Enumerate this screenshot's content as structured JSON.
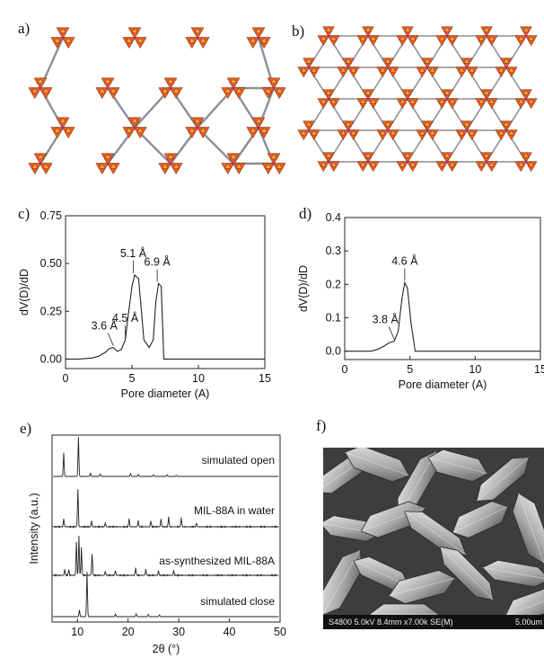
{
  "panels": {
    "a": "a)",
    "b": "b)",
    "c": "c)",
    "d": "d)",
    "e": "e)",
    "f": "f)"
  },
  "colors": {
    "tetra_main": "#ea5b1c",
    "tetra_light": "#f5a24a",
    "linker": "#8a8f9a",
    "line": "#222222"
  },
  "chart_data": [
    {
      "panel": "c",
      "type": "line",
      "xlabel": "Pore diameter (A)",
      "ylabel": "dV(D)/dD",
      "xlim": [
        0,
        15
      ],
      "ylim": [
        -0.05,
        0.75
      ],
      "xticks": [
        "0",
        "5",
        "10",
        "15"
      ],
      "yticks": [
        "0.00",
        "0.25",
        "0.50",
        "0.75"
      ],
      "x": [
        0,
        1,
        2,
        2.5,
        3,
        3.3,
        3.6,
        3.9,
        4.2,
        4.5,
        4.7,
        5.0,
        5.2,
        5.5,
        5.9,
        6.3,
        6.6,
        6.8,
        7.0,
        7.2,
        7.4,
        8,
        10,
        15
      ],
      "y": [
        0,
        0,
        0.005,
        0.015,
        0.035,
        0.055,
        0.06,
        0.04,
        0.05,
        0.1,
        0.22,
        0.38,
        0.44,
        0.42,
        0.1,
        0.06,
        0.1,
        0.3,
        0.395,
        0.38,
        0,
        0,
        0,
        0
      ],
      "annotations": [
        {
          "text": "3.6 Å",
          "x": 3.6,
          "y": 0.06
        },
        {
          "text": "4.5 Å",
          "x": 4.5,
          "y": 0.1
        },
        {
          "text": "5.1 Å",
          "x": 5.1,
          "y": 0.44
        },
        {
          "text": "6.9 Å",
          "x": 6.9,
          "y": 0.395
        }
      ]
    },
    {
      "panel": "d",
      "type": "line",
      "xlabel": "Pore diameter (A)",
      "ylabel": "dV(D)/dD",
      "xlim": [
        0,
        15
      ],
      "ylim": [
        -0.025,
        0.4
      ],
      "xticks": [
        "0",
        "5",
        "10",
        "15"
      ],
      "yticks": [
        "0.0",
        "0.1",
        "0.2",
        "0.3",
        "0.4"
      ],
      "x": [
        0,
        2,
        2.5,
        3.0,
        3.4,
        3.8,
        4.1,
        4.4,
        4.6,
        4.8,
        5.1,
        5.4,
        6,
        10,
        15
      ],
      "y": [
        0,
        0,
        0.005,
        0.015,
        0.025,
        0.03,
        0.06,
        0.16,
        0.205,
        0.19,
        0.08,
        0,
        0,
        0,
        0
      ],
      "annotations": [
        {
          "text": "3.8 Å",
          "x": 3.8,
          "y": 0.03
        },
        {
          "text": "4.6 Å",
          "x": 4.6,
          "y": 0.205
        }
      ]
    },
    {
      "panel": "e",
      "type": "line",
      "xlabel": "2θ (°)",
      "ylabel": "Intensity (a.u.)",
      "xlim": [
        5,
        50
      ],
      "xticks": [
        "10",
        "20",
        "30",
        "40",
        "50"
      ],
      "series": [
        {
          "name": "simulated open",
          "peaks": [
            [
              7.3,
              0.6
            ],
            [
              10.2,
              1.0
            ],
            [
              12.6,
              0.08
            ],
            [
              14.5,
              0.06
            ],
            [
              20.5,
              0.07
            ],
            [
              22.0,
              0.05
            ],
            [
              25.0,
              0.04
            ],
            [
              27.7,
              0.04
            ],
            [
              29.5,
              0.03
            ]
          ]
        },
        {
          "name": "MIL-88A in water",
          "peaks": [
            [
              7.3,
              0.2
            ],
            [
              10.1,
              0.95
            ],
            [
              12.8,
              0.15
            ],
            [
              15.5,
              0.1
            ],
            [
              20.2,
              0.2
            ],
            [
              22.0,
              0.15
            ],
            [
              24.5,
              0.15
            ],
            [
              26.5,
              0.2
            ],
            [
              28.0,
              0.25
            ],
            [
              30.5,
              0.22
            ],
            [
              33.5,
              0.1
            ]
          ]
        },
        {
          "name": "as-synthesized MIL-88A",
          "peaks": [
            [
              7.5,
              0.15
            ],
            [
              8.3,
              0.15
            ],
            [
              9.8,
              0.85
            ],
            [
              10.3,
              1.0
            ],
            [
              10.8,
              0.7
            ],
            [
              12.9,
              0.55
            ],
            [
              15.5,
              0.1
            ],
            [
              17.5,
              0.12
            ],
            [
              21.5,
              0.18
            ],
            [
              23.5,
              0.15
            ],
            [
              26.0,
              0.12
            ],
            [
              29.0,
              0.12
            ]
          ]
        },
        {
          "name": "simulated close",
          "peaks": [
            [
              10.4,
              0.15
            ],
            [
              11.9,
              1.0
            ],
            [
              17.5,
              0.06
            ],
            [
              21.6,
              0.06
            ],
            [
              24.0,
              0.05
            ],
            [
              26.2,
              0.04
            ]
          ]
        }
      ]
    }
  ],
  "sem": {
    "caption": "S4800 5.0kV 8.4mm x7.00k SE(M)",
    "scale_label": "5.00um"
  }
}
